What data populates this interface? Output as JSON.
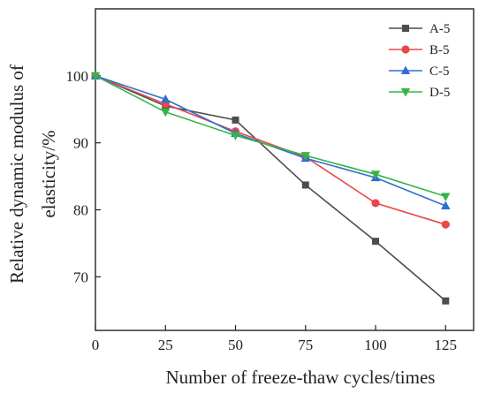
{
  "chart_data": {
    "type": "line",
    "title": "",
    "xlabel": "Number of freeze-thaw cycles/times",
    "ylabel_line1": "Relative dynamic modulus of",
    "ylabel_line2": "elasticity/%",
    "x": [
      0,
      25,
      50,
      75,
      100,
      125
    ],
    "xticks": [
      0,
      25,
      50,
      75,
      100,
      125
    ],
    "yticks": [
      70,
      80,
      90,
      100
    ],
    "xlim": [
      0,
      135
    ],
    "ylim": [
      62,
      110
    ],
    "grid": false,
    "legend_position": "top-right",
    "series": [
      {
        "name": "A-5",
        "color": "#4d4d4d",
        "marker": "square",
        "values": [
          100,
          95.5,
          93.4,
          83.7,
          75.3,
          66.4
        ]
      },
      {
        "name": "B-5",
        "color": "#e8484a",
        "marker": "circle",
        "values": [
          100,
          95.8,
          91.7,
          87.9,
          81.0,
          77.8
        ]
      },
      {
        "name": "C-5",
        "color": "#2f6fd0",
        "marker": "triangle-up",
        "values": [
          100,
          96.5,
          91.4,
          87.7,
          84.8,
          80.6
        ]
      },
      {
        "name": "D-5",
        "color": "#37b34a",
        "marker": "triangle-down",
        "values": [
          100,
          94.6,
          91.1,
          88.1,
          85.3,
          82.0
        ]
      }
    ]
  }
}
